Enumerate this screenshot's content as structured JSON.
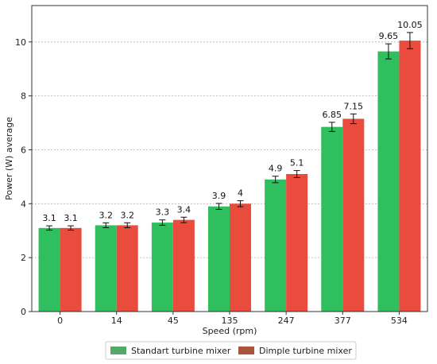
{
  "chart_data": {
    "type": "bar",
    "categories": [
      "0",
      "14",
      "45",
      "135",
      "247",
      "377",
      "534"
    ],
    "series": [
      {
        "name": "Standart turbine mixer",
        "values": [
          3.1,
          3.2,
          3.3,
          3.9,
          4.9,
          6.85,
          9.65
        ],
        "labels": [
          "3.1",
          "3.2",
          "3.3",
          "3.9",
          "4.9",
          "6.85",
          "9.65"
        ],
        "errors": [
          0.08,
          0.09,
          0.1,
          0.11,
          0.12,
          0.17,
          0.28
        ],
        "color": "#2fbf5f"
      },
      {
        "name": "Dimple turbine mixer",
        "values": [
          3.1,
          3.2,
          3.4,
          4.0,
          5.1,
          7.15,
          10.05
        ],
        "labels": [
          "3.1",
          "3.2",
          "3.4",
          "4",
          "5.1",
          "7.15",
          "10.05"
        ],
        "errors": [
          0.08,
          0.09,
          0.1,
          0.11,
          0.13,
          0.18,
          0.3
        ],
        "color": "#e94b3c"
      }
    ],
    "xlabel": "Speed (rpm)",
    "ylabel": "Power (W) average",
    "ylim": [
      0,
      11.35
    ],
    "yticks": [
      "0",
      "2",
      "4",
      "6",
      "8",
      "10"
    ],
    "grid": "horizontal-dotted",
    "legend_position": "bottom-center",
    "legend_colors": [
      "#55a868",
      "#a8553c"
    ]
  }
}
